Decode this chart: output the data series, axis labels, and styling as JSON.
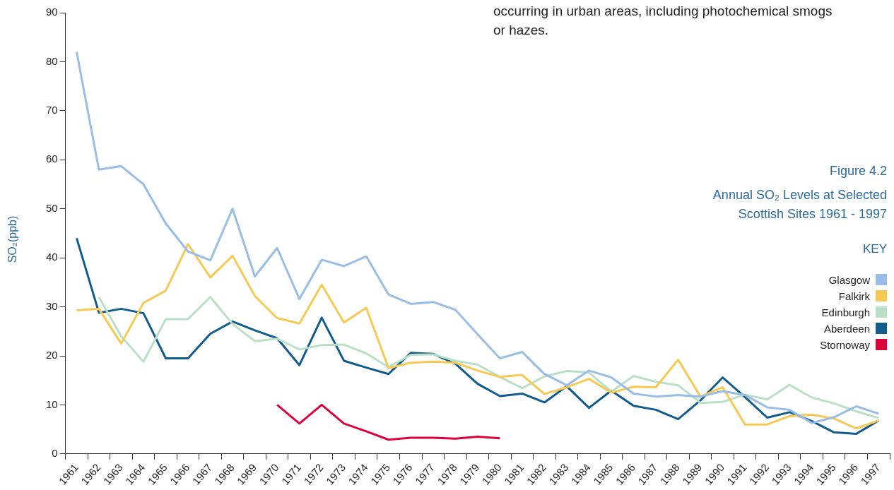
{
  "chart_data": {
    "type": "line",
    "title": "Figure 4.2",
    "subtitle": "Annual SO₂ Levels at Selected Scottish Sites 1961 - 1997",
    "ylabel": "SO₂(ppb)",
    "legend_title": "KEY",
    "annotations": [
      "occurring in urban areas, including photochemical smogs or hazes."
    ],
    "categories": [
      "1961",
      "1962",
      "1963",
      "1964",
      "1965",
      "1966",
      "1967",
      "1968",
      "1969",
      "1970",
      "1971",
      "1972",
      "1973",
      "1974",
      "1975",
      "1976",
      "1977",
      "1978",
      "1979",
      "1980",
      "1981",
      "1982",
      "1983",
      "1984",
      "1985",
      "1986",
      "1987",
      "1988",
      "1989",
      "1990",
      "1991",
      "1992",
      "1993",
      "1994",
      "1995",
      "1996",
      "1997"
    ],
    "ylim": [
      0,
      90
    ],
    "yticks": [
      0,
      10,
      20,
      30,
      40,
      50,
      60,
      70,
      80,
      90
    ],
    "grid": false,
    "legend": "right",
    "marker": "none",
    "line_style": "solid",
    "series": [
      {
        "name": "Glasgow",
        "color": "#98bde6",
        "values": [
          82,
          58,
          58.7,
          55,
          47,
          41.3,
          39.5,
          50,
          36.2,
          42,
          31.6,
          39.6,
          38.3,
          40.3,
          32.5,
          30.6,
          31,
          29.4,
          24.4,
          19.5,
          20.8,
          16.3,
          14,
          17,
          15.6,
          12.3,
          11.7,
          12,
          11.7,
          12.8,
          12,
          9.5,
          9,
          6.3,
          7.5,
          9.7,
          8.2
        ]
      },
      {
        "name": "Falkirk",
        "color": "#f7c852",
        "values": [
          29.3,
          29.6,
          22.5,
          30.8,
          33.3,
          42.8,
          36,
          40.4,
          32.2,
          27.7,
          26.6,
          34.5,
          26.8,
          29.8,
          17.5,
          18.6,
          18.8,
          18.6,
          17,
          15.7,
          16.1,
          12.2,
          13.6,
          15.3,
          12.5,
          13.7,
          13.6,
          19.2,
          11.7,
          13.6,
          6,
          6,
          7.7,
          8,
          7.2,
          5.2,
          6.8
        ]
      },
      {
        "name": "Edinburgh",
        "color": "#b9dfc6",
        "values": [
          null,
          32,
          24,
          18.8,
          27.5,
          27.5,
          32,
          26.5,
          23,
          23.5,
          21.3,
          22.2,
          22.3,
          20.5,
          17.7,
          20.2,
          20.3,
          19,
          18.2,
          15.7,
          13.4,
          15.8,
          16.9,
          16.6,
          12.7,
          15.9,
          14.7,
          14,
          10.4,
          10.6,
          12.1,
          11.1,
          14.1,
          11.5,
          10.3,
          8.7,
          7.3
        ]
      },
      {
        "name": "Aberdeen",
        "color": "#115c8e",
        "values": [
          44,
          28.8,
          29.6,
          28.7,
          19.5,
          19.5,
          24.5,
          27,
          25.2,
          23.6,
          18.1,
          27.8,
          19,
          17.6,
          16.3,
          20.6,
          20.4,
          18.4,
          14.3,
          11.8,
          12.3,
          10.5,
          13.8,
          9.4,
          12.9,
          9.8,
          9,
          7.1,
          10.9,
          15.6,
          11.6,
          7.4,
          8.5,
          6.7,
          4.4,
          4.1,
          6.8
        ]
      },
      {
        "name": "Stornoway",
        "color": "#e0003a",
        "values": [
          null,
          null,
          null,
          null,
          null,
          null,
          null,
          null,
          null,
          10,
          6.2,
          10,
          6.2,
          4.6,
          2.9,
          3.3,
          3.3,
          3.1,
          3.5,
          3.2,
          null,
          null,
          null,
          null,
          null,
          null,
          null,
          null,
          null,
          null,
          null,
          null,
          null,
          null,
          null,
          null,
          null
        ]
      }
    ]
  }
}
